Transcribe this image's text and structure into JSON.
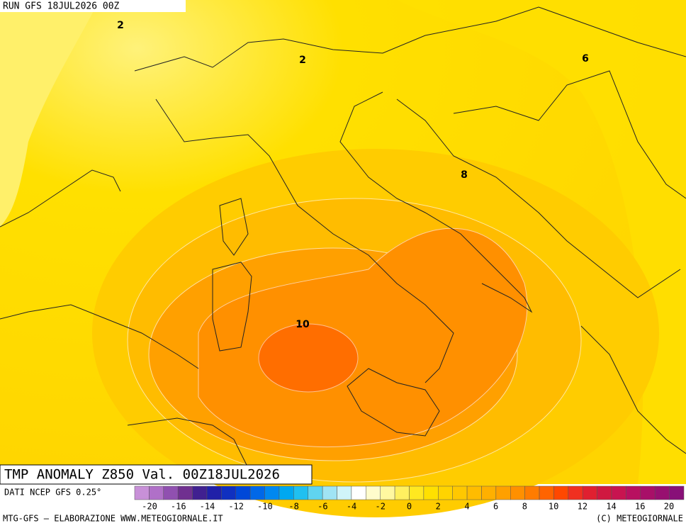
{
  "header": {
    "run": "RUN GFS 18JUL2026 00Z"
  },
  "contour_labels": [
    {
      "text": "2"
    },
    {
      "text": "2"
    },
    {
      "text": "6"
    },
    {
      "text": "8"
    },
    {
      "text": "10"
    }
  ],
  "title": "TMP ANOMALY Z850 Val. 00Z18JUL2026",
  "source": "DATI NCEP GFS 0.25°",
  "colorbar": {
    "colors": [
      "#c890d8",
      "#b070c8",
      "#9050b0",
      "#703090",
      "#402090",
      "#2020a8",
      "#1030c0",
      "#0048d8",
      "#0068e8",
      "#0088f0",
      "#00a8f0",
      "#20c0f0",
      "#60d4f0",
      "#a0e4f4",
      "#d0f4f8",
      "#ffffff",
      "#fffccc",
      "#fff8a0",
      "#fff060",
      "#ffe820",
      "#ffe000",
      "#ffd400",
      "#ffc800",
      "#ffbc00",
      "#ffb000",
      "#ffa000",
      "#ff9000",
      "#ff7c00",
      "#ff6400",
      "#ff4800",
      "#f03020",
      "#e02030",
      "#d01840",
      "#c81450",
      "#b81060",
      "#a81068",
      "#981070",
      "#881078"
    ],
    "labels": [
      -20,
      -16,
      -14,
      -12,
      -10,
      -8,
      -6,
      -4,
      -2,
      0,
      2,
      4,
      6,
      8,
      10,
      12,
      14,
      16,
      20
    ]
  },
  "footer": {
    "left": "MTG-GFS — ELABORAZIONE WWW.METEOGIORNALE.IT",
    "right": "(C) METEOGIORNALE"
  }
}
